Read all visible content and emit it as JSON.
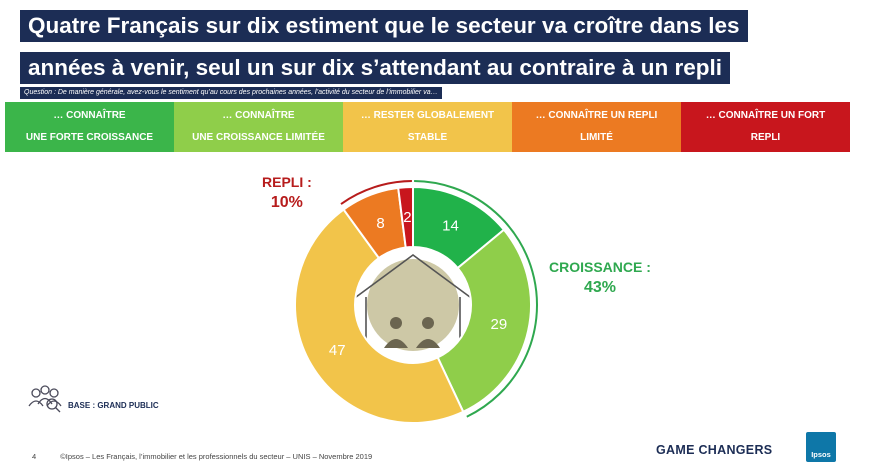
{
  "title": {
    "line1": "Quatre Français sur dix estiment que le secteur va croître dans les",
    "line2": "années à venir, seul un sur dix s’attendant au contraire à un repli"
  },
  "question": "Question : De manière générale, avez-vous le sentiment qu’au cours des prochaines années, l’activité du secteur de l’immobilier va…",
  "legend": [
    {
      "line1": "… connaître",
      "line2": "une forte croissance",
      "color": "#3bb54a"
    },
    {
      "line1": "… connaître",
      "line2": "une croissance limitée",
      "color": "#8fce4a"
    },
    {
      "line1": "… rester globalement",
      "line2": "stable",
      "color": "#f2c44a"
    },
    {
      "line1": "… connaître un repli",
      "line2": "limité",
      "color": "#ec7a22"
    },
    {
      "line1": "… connaître un fort",
      "line2": "repli",
      "color": "#c8161d"
    }
  ],
  "chart_data": {
    "type": "pie",
    "style": "donut",
    "categories": [
      "… connaître une forte croissance",
      "… connaître une croissance limitée",
      "… rester globalement stable",
      "… connaître un repli limité",
      "… connaître un fort repli"
    ],
    "values": [
      14,
      29,
      47,
      8,
      2
    ],
    "colors": [
      "#21b24a",
      "#8fce4a",
      "#f2c44a",
      "#ec7a22",
      "#c8161d"
    ],
    "legend_position": "top",
    "annotations": [
      {
        "label": "Repli :",
        "value": "10%",
        "color": "#b71c1c"
      },
      {
        "label": "Croissance :",
        "value": "43%",
        "color": "#2fa84f"
      }
    ]
  },
  "base": "Base : Grand public",
  "footer": {
    "page": "4",
    "source": "©Ipsos – Les Français, l’immobilier et les professionnels du secteur – UNIS – Novembre 2019"
  },
  "brand": {
    "tagline": "GAME CHANGERS",
    "logo": "Ipsos"
  }
}
